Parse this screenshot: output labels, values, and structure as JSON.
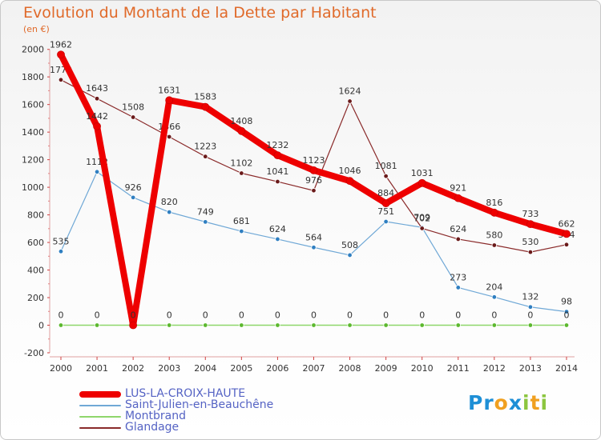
{
  "title": "Evolution du Montant de la Dette par Habitant",
  "unit": "(en €)",
  "logo": {
    "text": "Proxiti",
    "letters": [
      {
        "ch": "P",
        "color": "#1e8fd6"
      },
      {
        "ch": "r",
        "color": "#1e8fd6"
      },
      {
        "ch": "o",
        "color": "#f0a020"
      },
      {
        "ch": "x",
        "color": "#1e8fd6"
      },
      {
        "ch": "i",
        "color": "#8cc63f"
      },
      {
        "ch": "t",
        "color": "#f0a020"
      },
      {
        "ch": "i",
        "color": "#8cc63f"
      }
    ]
  },
  "chart_data": {
    "type": "line",
    "title": "Evolution du Montant de la Dette par Habitant",
    "ylabel": "(en €)",
    "xlabel": "",
    "ylim": [
      -200,
      2000
    ],
    "yticks": [
      -200,
      0,
      200,
      400,
      600,
      800,
      1000,
      1200,
      1400,
      1600,
      1800,
      2000
    ],
    "grid": false,
    "legend_position": "bottom-left",
    "x": [
      "2000",
      "2001",
      "2002",
      "2003",
      "2004",
      "2005",
      "2006",
      "2007",
      "2008",
      "2009",
      "2010",
      "2011",
      "2012",
      "2013",
      "2014"
    ],
    "series": [
      {
        "name": "Saint-Julien-en-Beauchêne",
        "color": "#6fa8d6",
        "marker": "#2f7fc1",
        "width": 1.2,
        "values": [
          535,
          1112,
          926,
          820,
          749,
          681,
          624,
          564,
          508,
          751,
          709,
          273,
          204,
          132,
          98
        ],
        "labels": [
          "535",
          "1112",
          "926",
          "820",
          "749",
          "681",
          "624",
          "564",
          "508",
          "751",
          "709",
          "273",
          "204",
          "132",
          "98"
        ]
      },
      {
        "name": "Montbrand",
        "color": "#8ed66b",
        "marker": "#5cb82e",
        "width": 1.5,
        "values": [
          0,
          0,
          0,
          0,
          0,
          0,
          0,
          0,
          0,
          0,
          0,
          0,
          0,
          0,
          0
        ],
        "labels": [
          "0",
          "0",
          "0",
          "0",
          "0",
          "0",
          "0",
          "0",
          "0",
          "0",
          "0",
          "0",
          "0",
          "0",
          "0"
        ]
      },
      {
        "name": "Glandage",
        "color": "#8a2a2a",
        "marker": "#6a1a1a",
        "width": 1.2,
        "values": [
          1779,
          1643,
          1508,
          1366,
          1223,
          1102,
          1041,
          976,
          1624,
          1081,
          702,
          624,
          580,
          530,
          584
        ],
        "labels": [
          "1779",
          "1643",
          "1508",
          "1366",
          "1223",
          "1102",
          "1041",
          "976",
          "1624",
          "1081",
          "702",
          "624",
          "580",
          "530",
          "584"
        ]
      },
      {
        "name": "LUS-LA-CROIX-HAUTE",
        "color": "#ee0000",
        "marker": "#ee0000",
        "width": 8,
        "values": [
          1962,
          1442,
          0,
          1631,
          1583,
          1408,
          1232,
          1123,
          1046,
          884,
          1031,
          921,
          816,
          733,
          662
        ],
        "labels": [
          "1962",
          "1442",
          "0",
          "1631",
          "1583",
          "1408",
          "1232",
          "1123",
          "1046",
          "884",
          "1031",
          "921",
          "816",
          "733",
          "662"
        ]
      }
    ],
    "legend": [
      {
        "name": "LUS-LA-CROIX-HAUTE",
        "color": "#ee0000",
        "thickness": 8
      },
      {
        "name": "Saint-Julien-en-Beauchêne",
        "color": "#6fa8d6",
        "thickness": 1.5
      },
      {
        "name": "Montbrand",
        "color": "#8ed66b",
        "thickness": 1.5
      },
      {
        "name": "Glandage",
        "color": "#8a2a2a",
        "thickness": 1.5
      }
    ]
  }
}
